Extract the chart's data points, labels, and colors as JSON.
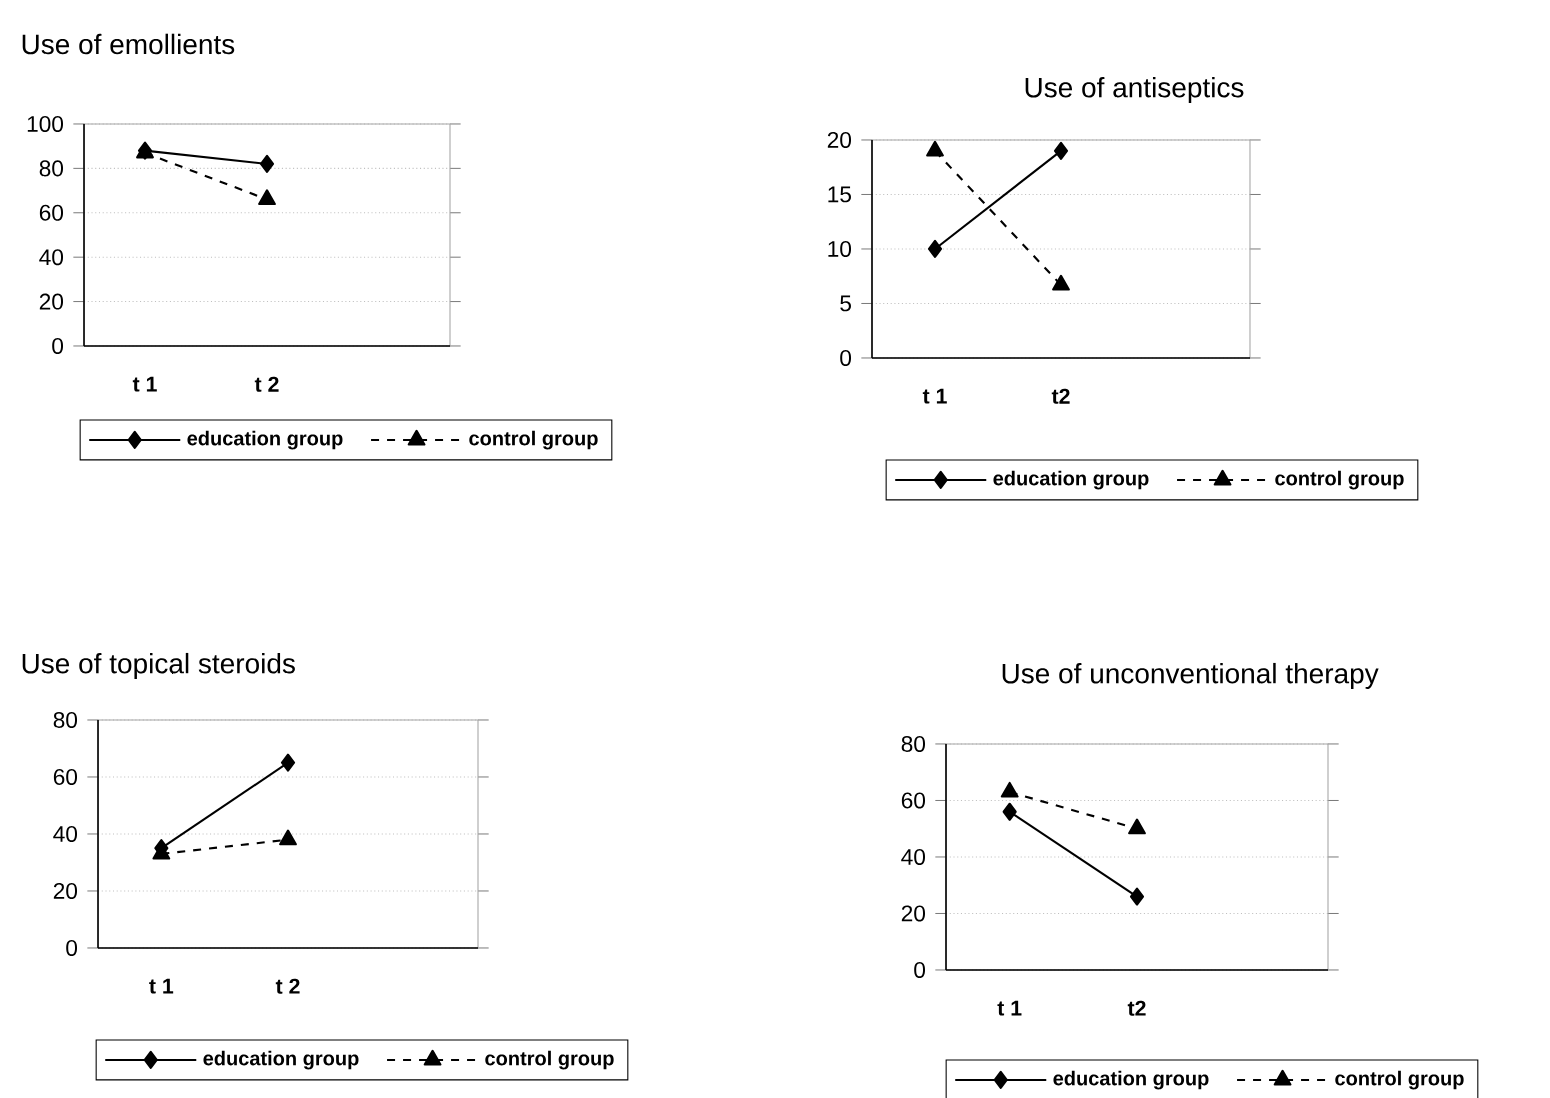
{
  "chart_data": [
    {
      "type": "line",
      "title": "Use of emollients",
      "categories": [
        "t 1",
        "t 2",
        null
      ],
      "ylim": [
        0,
        100
      ],
      "yticks": [
        0,
        20,
        40,
        60,
        80,
        100
      ],
      "grid": "y",
      "legend": "bottom",
      "series": [
        {
          "name": "education group",
          "color": "#000000",
          "values": [
            88,
            82,
            null
          ],
          "marker": "diamond",
          "line_style": "solid"
        },
        {
          "name": "control group",
          "color": "#000000",
          "values": [
            87,
            66,
            null
          ],
          "marker": "triangle",
          "line_style": "dashed"
        }
      ]
    },
    {
      "type": "line",
      "title": "Use of antiseptics",
      "categories": [
        "t 1",
        "t2",
        null
      ],
      "ylim": [
        0,
        20
      ],
      "yticks": [
        0,
        5,
        10,
        15,
        20
      ],
      "grid": "y",
      "legend": "bottom",
      "series": [
        {
          "name": "education group",
          "color": "#000000",
          "values": [
            10,
            19,
            null
          ],
          "marker": "diamond",
          "line_style": "solid"
        },
        {
          "name": "control group",
          "color": "#000000",
          "values": [
            19,
            6.7,
            null
          ],
          "marker": "triangle",
          "line_style": "dashed"
        }
      ]
    },
    {
      "type": "line",
      "title": "Use of topical steroids",
      "categories": [
        "t 1",
        "t 2",
        null
      ],
      "ylim": [
        0,
        80
      ],
      "yticks": [
        0,
        20,
        40,
        60,
        80
      ],
      "grid": "y",
      "legend": "bottom",
      "series": [
        {
          "name": "education group",
          "color": "#000000",
          "values": [
            35,
            65,
            null
          ],
          "marker": "diamond",
          "line_style": "solid"
        },
        {
          "name": "control group",
          "color": "#000000",
          "values": [
            33,
            38,
            null
          ],
          "marker": "triangle",
          "line_style": "dashed"
        }
      ]
    },
    {
      "type": "line",
      "title": "Use of unconventional therapy",
      "categories": [
        "t 1",
        "t2",
        null
      ],
      "ylim": [
        0,
        80
      ],
      "yticks": [
        0,
        20,
        40,
        60,
        80
      ],
      "grid": "y",
      "legend": "bottom",
      "series": [
        {
          "name": "education group",
          "color": "#000000",
          "values": [
            56,
            26,
            null
          ],
          "marker": "diamond",
          "line_style": "solid"
        },
        {
          "name": "control group",
          "color": "#000000",
          "values": [
            63,
            50,
            null
          ],
          "marker": "triangle",
          "line_style": "dashed"
        }
      ]
    }
  ]
}
